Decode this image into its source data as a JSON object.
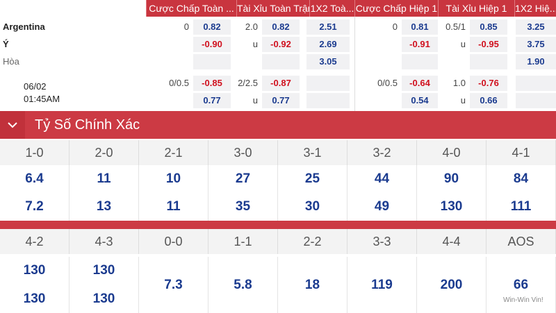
{
  "odds_table": {
    "headers": [
      "Cược Chấp Toàn ...",
      "Tài Xỉu Toàn Trận",
      "1X2 Toà...",
      "Cược Chấp Hiệp 1",
      "Tài Xỉu Hiệp 1",
      "1X2 Hiệ..."
    ],
    "rows": [
      {
        "label": "Argentina",
        "cells": [
          "0",
          "0.82",
          "2.0",
          "0.82",
          "2.51",
          "0",
          "0.81",
          "0.5/1",
          "0.85",
          "3.25"
        ]
      },
      {
        "label": "Ý",
        "cells": [
          null,
          "-0.90",
          "u",
          "-0.92",
          "2.69",
          null,
          "-0.91",
          "u",
          "-0.95",
          "3.75"
        ]
      },
      {
        "label": "Hòa",
        "cells": [
          null,
          null,
          null,
          null,
          "3.05",
          null,
          null,
          null,
          null,
          "1.90"
        ]
      },
      {
        "label": "06/02",
        "cells": [
          "0/0.5",
          "-0.85",
          "2/2.5",
          "-0.87",
          null,
          "0/0.5",
          "-0.64",
          "1.0",
          "-0.76",
          null
        ]
      },
      {
        "label": "01:45AM",
        "cells": [
          null,
          "0.77",
          "u",
          "0.77",
          null,
          null,
          "0.54",
          "u",
          "0.66",
          null
        ]
      }
    ]
  },
  "exact_score": {
    "title": "Tỷ Số Chính Xác",
    "blocks": [
      [
        {
          "score": "1-0",
          "odds": [
            "6.4",
            "7.2"
          ]
        },
        {
          "score": "2-0",
          "odds": [
            "11",
            "13"
          ]
        },
        {
          "score": "2-1",
          "odds": [
            "10",
            "11"
          ]
        },
        {
          "score": "3-0",
          "odds": [
            "27",
            "35"
          ]
        },
        {
          "score": "3-1",
          "odds": [
            "25",
            "30"
          ]
        },
        {
          "score": "3-2",
          "odds": [
            "44",
            "49"
          ]
        },
        {
          "score": "4-0",
          "odds": [
            "90",
            "130"
          ]
        },
        {
          "score": "4-1",
          "odds": [
            "84",
            "111"
          ]
        }
      ],
      [
        {
          "score": "4-2",
          "odds": [
            "130",
            "130"
          ]
        },
        {
          "score": "4-3",
          "odds": [
            "130",
            "130"
          ]
        },
        {
          "score": "0-0",
          "odds": [
            "7.3"
          ]
        },
        {
          "score": "1-1",
          "odds": [
            "5.8"
          ]
        },
        {
          "score": "2-2",
          "odds": [
            "18"
          ]
        },
        {
          "score": "3-3",
          "odds": [
            "119"
          ]
        },
        {
          "score": "4-4",
          "odds": [
            "200"
          ]
        },
        {
          "score": "AOS",
          "odds": [
            "66"
          ]
        }
      ]
    ]
  },
  "watermark": "Win-Win Vin!"
}
